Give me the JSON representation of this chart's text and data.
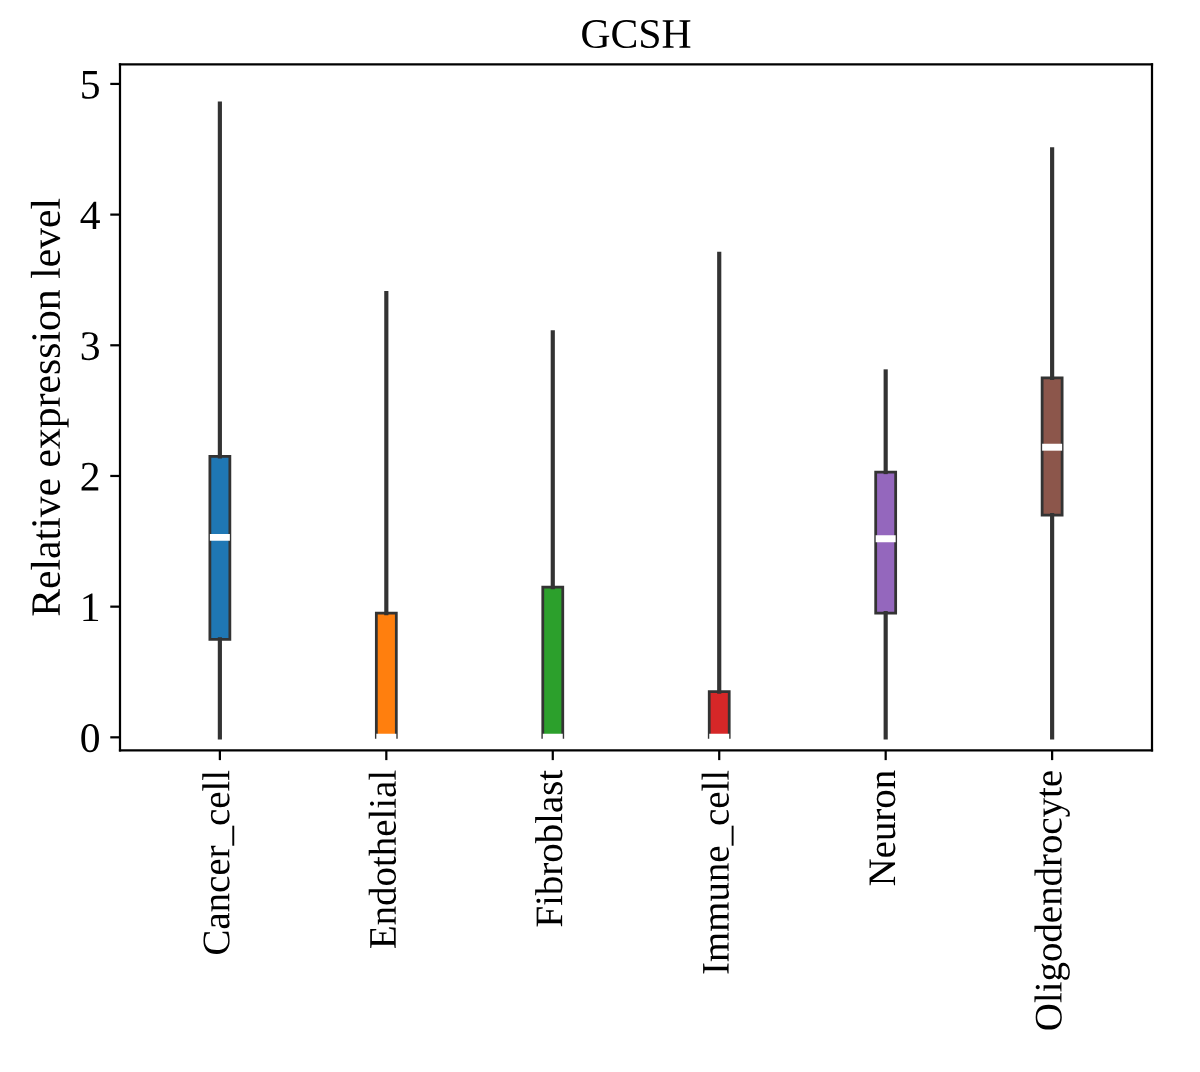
{
  "chart_data": {
    "type": "box",
    "title": "GCSH",
    "ylabel": "Relative expression level",
    "categories": [
      "Cancer_cell",
      "Endothelial",
      "Fibroblast",
      "Immune_cell",
      "Neuron",
      "Oligodendrocyte"
    ],
    "colors": [
      "#1f77b4",
      "#ff7f0e",
      "#2ca02c",
      "#d62728",
      "#9467bd",
      "#8c564b"
    ],
    "boxes": [
      {
        "low": 0,
        "q1": 0.75,
        "median": 1.53,
        "q3": 2.15,
        "high": 4.85
      },
      {
        "low": 0,
        "q1": 0,
        "median": 0,
        "q3": 0.95,
        "high": 3.4
      },
      {
        "low": 0,
        "q1": 0,
        "median": 0,
        "q3": 1.15,
        "high": 3.1
      },
      {
        "low": 0,
        "q1": 0,
        "median": 0,
        "q3": 0.35,
        "high": 3.7
      },
      {
        "low": 0,
        "q1": 0.95,
        "median": 1.52,
        "q3": 2.03,
        "high": 2.8
      },
      {
        "low": 0,
        "q1": 1.7,
        "median": 2.22,
        "q3": 2.75,
        "high": 4.5
      }
    ],
    "ylim": [
      -0.1,
      5.15
    ],
    "yticks": [
      0,
      1,
      2,
      3,
      4,
      5
    ],
    "grid": false
  }
}
